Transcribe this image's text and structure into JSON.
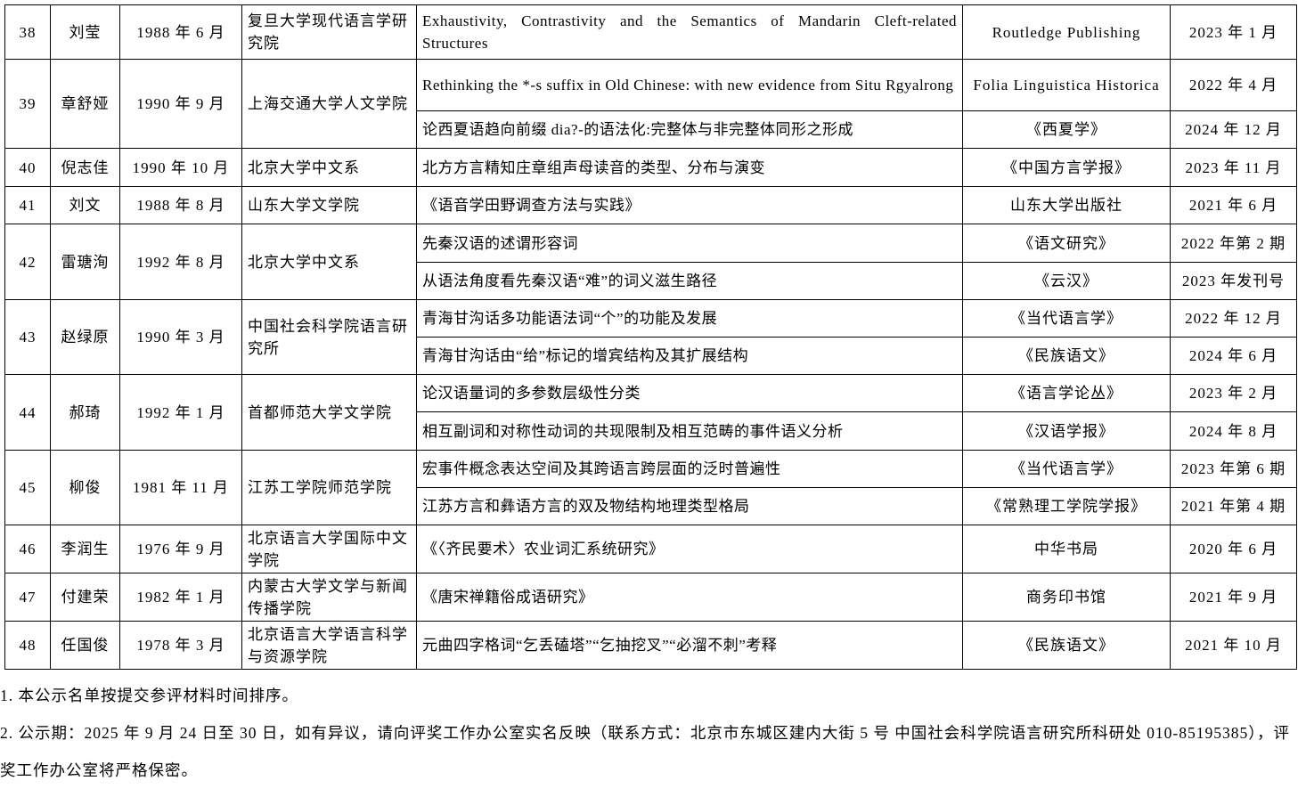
{
  "rows": [
    {
      "no": "38",
      "name": "刘莹",
      "birth": "1988 年 6 月",
      "unit": "复旦大学现代语言学研究院",
      "works": [
        {
          "title": "Exhaustivity, Contrastivity and the Semantics of Mandarin Cleft-related Structures",
          "publisher": "Routledge Publishing",
          "date": "2023 年 1 月"
        }
      ]
    },
    {
      "no": "39",
      "name": "章舒娅",
      "birth": "1990 年 9 月",
      "unit": "上海交通大学人文学院",
      "works": [
        {
          "title": "Rethinking the *-s suffix in Old Chinese: with new evidence from Situ Rgyalrong",
          "publisher": "Folia Linguistica Historica",
          "date": "2022 年 4 月"
        },
        {
          "title": "论西夏语趋向前缀 dia?-的语法化:完整体与非完整体同形之形成",
          "publisher": "《西夏学》",
          "date": "2024 年 12 月"
        }
      ]
    },
    {
      "no": "40",
      "name": "倪志佳",
      "birth": "1990 年 10 月",
      "unit": "北京大学中文系",
      "works": [
        {
          "title": "北方方言精知庄章组声母读音的类型、分布与演变",
          "publisher": "《中国方言学报》",
          "date": "2023 年 11 月"
        }
      ]
    },
    {
      "no": "41",
      "name": "刘文",
      "birth": "1988 年 8 月",
      "unit": "山东大学文学院",
      "works": [
        {
          "title": "《语音学田野调查方法与实践》",
          "publisher": "山东大学出版社",
          "date": "2021 年 6 月"
        }
      ]
    },
    {
      "no": "42",
      "name": "雷瑭洵",
      "birth": "1992 年 8 月",
      "unit": "北京大学中文系",
      "works": [
        {
          "title": "先秦汉语的述谓形容词",
          "publisher": "《语文研究》",
          "date": "2022 年第 2 期"
        },
        {
          "title": "从语法角度看先秦汉语“难”的词义滋生路径",
          "publisher": "《云汉》",
          "date": "2023 年发刊号"
        }
      ]
    },
    {
      "no": "43",
      "name": "赵绿原",
      "birth": "1990 年 3 月",
      "unit": "中国社会科学院语言研究所",
      "works": [
        {
          "title": "青海甘沟话多功能语法词“个”的功能及发展",
          "publisher": "《当代语言学》",
          "date": "2022 年 12 月"
        },
        {
          "title": "青海甘沟话由“给”标记的增宾结构及其扩展结构",
          "publisher": "《民族语文》",
          "date": "2024 年 6 月"
        }
      ]
    },
    {
      "no": "44",
      "name": "郝琦",
      "birth": "1992 年 1 月",
      "unit": "首都师范大学文学院",
      "works": [
        {
          "title": "论汉语量词的多参数层级性分类",
          "publisher": "《语言学论丛》",
          "date": "2023 年 2 月"
        },
        {
          "title": "相互副词和对称性动词的共现限制及相互范畴的事件语义分析",
          "publisher": "《汉语学报》",
          "date": "2024 年 8 月"
        }
      ]
    },
    {
      "no": "45",
      "name": "柳俊",
      "birth": "1981 年 11 月",
      "unit": "江苏工学院师范学院",
      "works": [
        {
          "title": "宏事件概念表达空间及其跨语言跨层面的泛时普遍性",
          "publisher": "《当代语言学》",
          "date": "2023 年第 6 期"
        },
        {
          "title": "江苏方言和彝语方言的双及物结构地理类型格局",
          "publisher": "《常熟理工学院学报》",
          "date": "2021 年第 4 期"
        }
      ]
    },
    {
      "no": "46",
      "name": "李润生",
      "birth": "1976 年 9 月",
      "unit": "北京语言大学国际中文学院",
      "works": [
        {
          "title": "《〈齐民要术〉农业词汇系统研究》",
          "publisher": "中华书局",
          "date": "2020 年 6 月"
        }
      ]
    },
    {
      "no": "47",
      "name": "付建荣",
      "birth": "1982 年 1 月",
      "unit": "内蒙古大学文学与新闻传播学院",
      "works": [
        {
          "title": "《唐宋禅籍俗成语研究》",
          "publisher": "商务印书馆",
          "date": "2021 年 9 月"
        }
      ]
    },
    {
      "no": "48",
      "name": "任国俊",
      "birth": "1978 年 3 月",
      "unit": "北京语言大学语言科学与资源学院",
      "works": [
        {
          "title": "元曲四字格词“乞丢磕塔”“乞抽挖叉”“必溜不刺”考释",
          "publisher": "《民族语文》",
          "date": "2021 年 10 月"
        }
      ]
    }
  ],
  "notes": [
    "1. 本公示名单按提交参评材料时间排序。",
    "2. 公示期：2025 年 9 月 24 日至 30 日，如有异议，请向评奖工作办公室实名反映（联系方式：北京市东城区建内大街 5 号 中国社会科学院语言研究所科研处 010-85195385），评奖工作办公室将严格保密。"
  ]
}
